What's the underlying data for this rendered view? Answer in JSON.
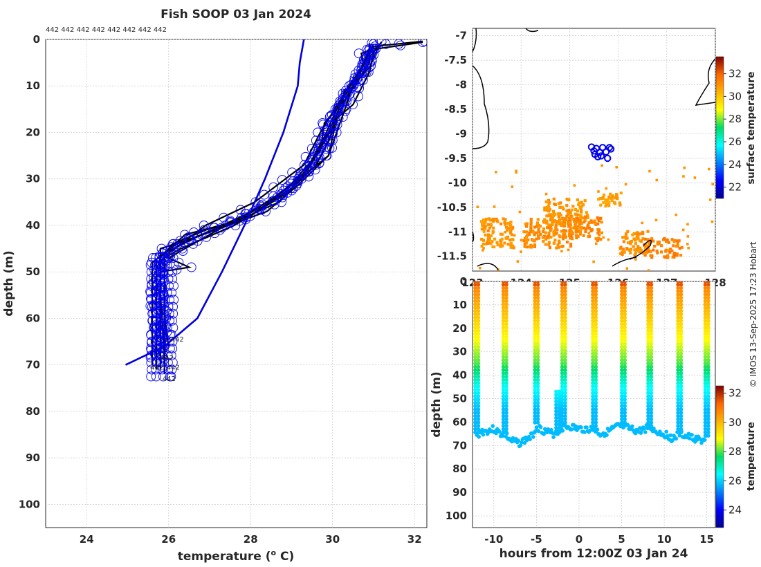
{
  "chart_data": [
    {
      "id": "profile",
      "type": "line",
      "title": "Fish SOOP 03 Jan 2024",
      "xlabel": "temperature (",
      "xlabel_sup": "o",
      "xlabel_end": " C)",
      "ylabel": "depth (m)",
      "xlim": [
        23,
        32.3
      ],
      "ylim": [
        105,
        0
      ],
      "xticks": [
        24,
        26,
        28,
        30,
        32
      ],
      "yticks": [
        0,
        10,
        20,
        30,
        40,
        50,
        60,
        70,
        80,
        90,
        100
      ],
      "top_label": "442 442 442 442 442 442 442 442",
      "profile_labels": [
        {
          "text": "442",
          "x": 26.05,
          "y": 65
        },
        {
          "text": "442",
          "x": 25.8,
          "y": 69
        },
        {
          "text": "442",
          "x": 25.95,
          "y": 71
        },
        {
          "text": "442",
          "x": 25.55,
          "y": 71
        },
        {
          "text": "442",
          "x": 25.85,
          "y": 73.5
        }
      ],
      "climatology": {
        "name": "climatology",
        "color": "#0000dd",
        "points": [
          [
            29.3,
            0
          ],
          [
            29.2,
            5
          ],
          [
            29.15,
            10
          ],
          [
            28.8,
            20
          ],
          [
            28.35,
            30
          ],
          [
            27.85,
            40
          ],
          [
            27.3,
            50
          ],
          [
            26.7,
            60
          ],
          [
            25.9,
            66
          ],
          [
            24.95,
            70
          ]
        ]
      },
      "profiles": [
        {
          "name": "profile-1",
          "points": [
            [
              32.2,
              0.6
            ],
            [
              31.1,
              2
            ],
            [
              30.9,
              6
            ],
            [
              30.5,
              10
            ],
            [
              30.1,
              20
            ],
            [
              29.9,
              25
            ],
            [
              29.2,
              30
            ],
            [
              28.0,
              38
            ],
            [
              26.9,
              41
            ],
            [
              26.1,
              44
            ],
            [
              25.8,
              47
            ],
            [
              25.8,
              60
            ],
            [
              25.8,
              71
            ]
          ]
        },
        {
          "name": "profile-2",
          "points": [
            [
              31.0,
              1
            ],
            [
              30.8,
              4
            ],
            [
              30.6,
              8
            ],
            [
              30.2,
              15
            ],
            [
              29.9,
              22
            ],
            [
              29.6,
              27
            ],
            [
              28.9,
              33
            ],
            [
              27.6,
              40
            ],
            [
              26.3,
              45
            ],
            [
              25.7,
              48
            ],
            [
              25.7,
              60
            ],
            [
              25.7,
              69
            ]
          ]
        },
        {
          "name": "profile-3",
          "points": [
            [
              30.9,
              0.8
            ],
            [
              30.9,
              5
            ],
            [
              30.4,
              12
            ],
            [
              29.8,
              18
            ],
            [
              29.7,
              24
            ],
            [
              29.0,
              32
            ],
            [
              28.3,
              36
            ],
            [
              26.8,
              42
            ],
            [
              25.9,
              46
            ],
            [
              25.9,
              58
            ],
            [
              25.9,
              72
            ]
          ]
        },
        {
          "name": "profile-4",
          "points": [
            [
              31.3,
              1
            ],
            [
              30.7,
              3
            ],
            [
              30.8,
              7
            ],
            [
              30.3,
              11
            ],
            [
              30.0,
              19
            ],
            [
              29.4,
              28
            ],
            [
              28.6,
              34
            ],
            [
              27.2,
              41
            ],
            [
              26.0,
              47
            ],
            [
              26.5,
              49
            ],
            [
              25.8,
              50
            ],
            [
              25.8,
              65
            ],
            [
              25.8,
              70
            ]
          ]
        },
        {
          "name": "profile-5",
          "points": [
            [
              30.9,
              2
            ],
            [
              30.6,
              9
            ],
            [
              30.2,
              13
            ],
            [
              29.8,
              21
            ],
            [
              29.3,
              29
            ],
            [
              28.7,
              35
            ],
            [
              27.4,
              40
            ],
            [
              26.5,
              43
            ],
            [
              25.8,
              45
            ],
            [
              25.8,
              55
            ],
            [
              25.9,
              68
            ]
          ]
        },
        {
          "name": "profile-6",
          "points": [
            [
              31.0,
              3
            ],
            [
              30.9,
              7
            ],
            [
              30.5,
              14
            ],
            [
              30.1,
              17
            ],
            [
              29.9,
              25
            ],
            [
              29.2,
              31
            ],
            [
              28.4,
              37
            ],
            [
              26.2,
              44
            ],
            [
              25.6,
              48
            ],
            [
              25.6,
              62
            ],
            [
              25.6,
              70
            ]
          ]
        },
        {
          "name": "profile-7",
          "points": [
            [
              32.2,
              0.4
            ],
            [
              31.0,
              1.5
            ],
            [
              30.7,
              6
            ],
            [
              30.3,
              12
            ],
            [
              29.9,
              20
            ],
            [
              29.5,
              26
            ],
            [
              28.9,
              32
            ],
            [
              27.7,
              39
            ],
            [
              26.4,
              42
            ],
            [
              25.9,
              46
            ],
            [
              25.9,
              60
            ],
            [
              26.0,
              66
            ]
          ]
        },
        {
          "name": "profile-8",
          "points": [
            [
              31.2,
              0.5
            ],
            [
              30.8,
              5
            ],
            [
              30.4,
              10
            ],
            [
              29.7,
              20
            ],
            [
              29.3,
              27
            ],
            [
              28.1,
              35
            ],
            [
              26.9,
              40
            ],
            [
              26.0,
              46
            ],
            [
              25.7,
              49
            ],
            [
              25.7,
              64
            ],
            [
              25.7,
              71
            ]
          ]
        }
      ],
      "markers": {
        "color": "#0000ee",
        "columns": [
          {
            "xs": [
              25.6,
              25.7,
              25.85,
              26.0,
              26.1
            ],
            "from": 47,
            "to": 73
          }
        ]
      }
    },
    {
      "id": "map",
      "type": "heatmap",
      "xlim": [
        123,
        128
      ],
      "ylim": [
        -11.8,
        -6.85
      ],
      "xticks": [
        123,
        124,
        125,
        126,
        127,
        128
      ],
      "yticks": [
        -7,
        -7.5,
        -8,
        -8.5,
        -9,
        -9.5,
        -10,
        -10.5,
        -11,
        -11.5
      ],
      "ytick_labels": [
        "-7",
        "-7.5",
        "-8",
        "-8.5",
        "-9",
        "-9.5",
        "-10",
        "-10.5",
        "-11",
        "-11.5"
      ],
      "colorbar": {
        "label": "surface temperature",
        "min": 21,
        "max": 33.5,
        "ticks": [
          22,
          24,
          26,
          28,
          30,
          32
        ]
      },
      "track_points": [
        [
          125.45,
          -9.27
        ],
        [
          125.55,
          -9.3
        ],
        [
          125.68,
          -9.28
        ],
        [
          125.82,
          -9.28
        ],
        [
          125.5,
          -9.35
        ],
        [
          125.62,
          -9.38
        ],
        [
          125.75,
          -9.37
        ],
        [
          125.52,
          -9.42
        ],
        [
          125.65,
          -9.45
        ],
        [
          125.78,
          -9.5
        ],
        [
          125.58,
          -9.47
        ],
        [
          125.85,
          -9.31
        ]
      ],
      "sst_clusters": [
        {
          "lon": 124.5,
          "lat": -11.0,
          "w": 0.5,
          "h": 0.3,
          "t": 31.2
        },
        {
          "lon": 124.9,
          "lat": -10.6,
          "w": 0.45,
          "h": 0.3,
          "t": 31.0
        },
        {
          "lon": 125.3,
          "lat": -10.9,
          "w": 0.35,
          "h": 0.25,
          "t": 31.3
        },
        {
          "lon": 126.9,
          "lat": -11.3,
          "w": 0.4,
          "h": 0.2,
          "t": 31.4
        },
        {
          "lon": 123.5,
          "lat": -11.0,
          "w": 0.35,
          "h": 0.3,
          "t": 31.0
        },
        {
          "lon": 125.8,
          "lat": -10.3,
          "w": 0.25,
          "h": 0.15,
          "t": 30.8
        },
        {
          "lon": 126.3,
          "lat": -11.2,
          "w": 0.3,
          "h": 0.25,
          "t": 31.1
        }
      ]
    },
    {
      "id": "section",
      "type": "scatter",
      "xlabel": "hours from 12:00Z 03 Jan 24",
      "ylabel": "depth (m)",
      "xlim": [
        -12.5,
        16
      ],
      "ylim": [
        105,
        0
      ],
      "xticks": [
        -10,
        -5,
        0,
        5,
        10,
        15
      ],
      "yticks": [
        0,
        10,
        20,
        30,
        40,
        50,
        60,
        70,
        80,
        90,
        100
      ],
      "colorbar": {
        "label": "temperature",
        "min": 22.8,
        "max": 32.5,
        "ticks": [
          24,
          26,
          28,
          30,
          32
        ]
      },
      "casts": [
        {
          "hour": -12.0,
          "top": 0,
          "bottom": 65
        },
        {
          "hour": -8.7,
          "top": 0,
          "bottom": 65
        },
        {
          "hour": -5.0,
          "top": 0,
          "bottom": 61
        },
        {
          "hour": -2.5,
          "top": 47,
          "bottom": 64
        },
        {
          "hour": -1.8,
          "top": 0,
          "bottom": 62
        },
        {
          "hour": 1.8,
          "top": 0,
          "bottom": 63
        },
        {
          "hour": 5.2,
          "top": 0,
          "bottom": 62
        },
        {
          "hour": 8.3,
          "top": 0,
          "bottom": 62
        },
        {
          "hour": 11.8,
          "top": 0,
          "bottom": 65
        },
        {
          "hour": 15.0,
          "top": 0,
          "bottom": 66
        }
      ],
      "bottom_trace": [
        [
          -12.0,
          66
        ],
        [
          -11.5,
          64
        ],
        [
          -11,
          64
        ],
        [
          -10,
          63
        ],
        [
          -9.2,
          65
        ],
        [
          -8.7,
          65
        ],
        [
          -8,
          68
        ],
        [
          -7,
          69
        ],
        [
          -6,
          67
        ],
        [
          -5.5,
          66
        ],
        [
          -5,
          62
        ],
        [
          -4,
          64
        ],
        [
          -3,
          65
        ],
        [
          -2.5,
          64
        ],
        [
          -1.8,
          62
        ],
        [
          -1,
          62
        ],
        [
          0,
          63
        ],
        [
          1.8,
          63
        ],
        [
          2.5,
          65
        ],
        [
          3.5,
          64
        ],
        [
          4.5,
          62
        ],
        [
          5.2,
          62
        ],
        [
          6,
          63
        ],
        [
          7,
          64
        ],
        [
          8.3,
          62
        ],
        [
          9,
          64
        ],
        [
          10,
          65
        ],
        [
          11,
          67
        ],
        [
          11.8,
          65
        ],
        [
          12.5,
          66
        ],
        [
          13.5,
          67
        ],
        [
          14.5,
          68
        ],
        [
          15.0,
          66
        ]
      ]
    }
  ],
  "credit": "© IMOS 13-Sep-2025 17:23 Hobart"
}
